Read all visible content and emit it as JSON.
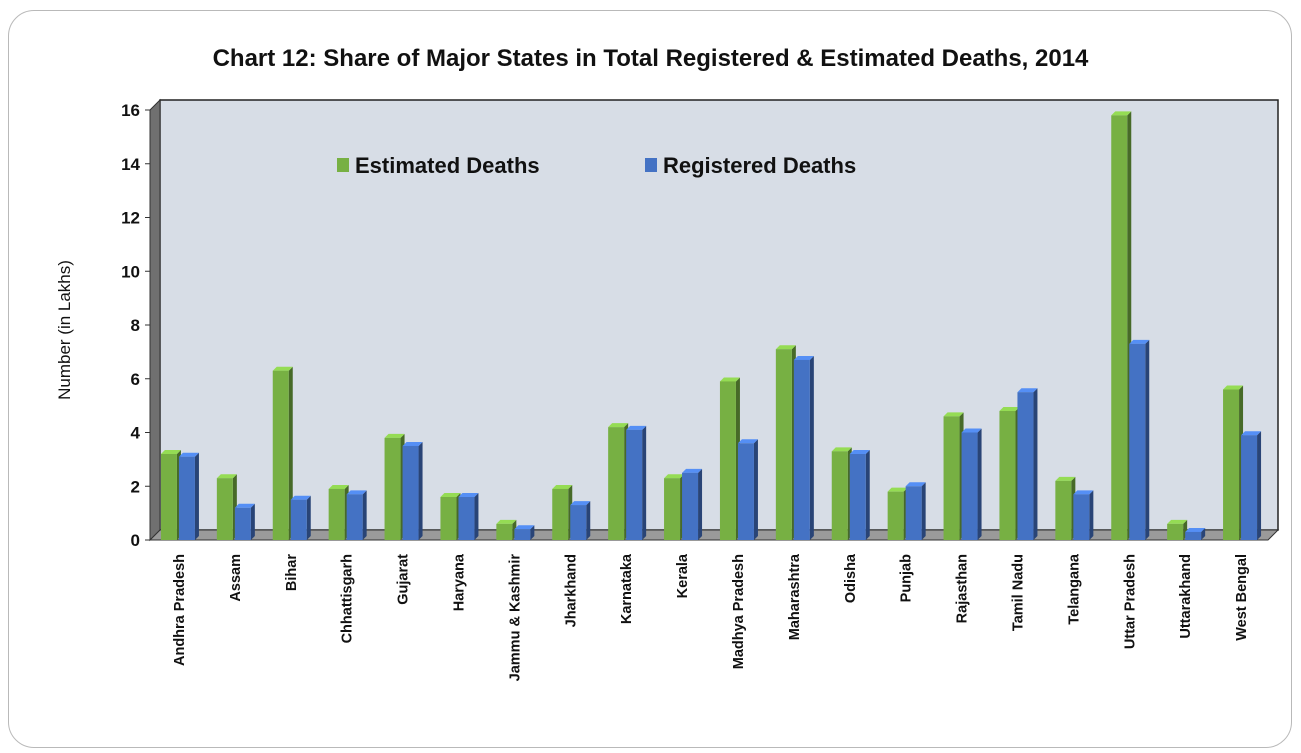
{
  "chart_data": {
    "type": "bar",
    "title": "Chart 12: Share of Major States in Total Registered & Estimated Deaths, 2014",
    "ylabel": "Number (in Lakhs)",
    "xlabel": "",
    "ylim": [
      0,
      16
    ],
    "yticks": [
      "0",
      "2",
      "4",
      "6",
      "8",
      "10",
      "12",
      "14",
      "16"
    ],
    "legend_position": "top-left inside plot",
    "grid": false,
    "categories": [
      "Andhra Pradesh",
      "Assam",
      "Bihar",
      "Chhattisgarh",
      "Gujarat",
      "Haryana",
      "Jammu & Kashmir",
      "Jharkhand",
      "Karnataka",
      "Kerala",
      "Madhya Pradesh",
      "Maharashtra",
      "Odisha",
      "Punjab",
      "Rajasthan",
      "Tamil Nadu",
      "Telangana",
      "Uttar Pradesh",
      "Uttarakhand",
      "West Bengal"
    ],
    "series": [
      {
        "name": "Estimated Deaths",
        "color": "#77b043",
        "values": [
          3.2,
          2.3,
          6.3,
          1.9,
          3.8,
          1.6,
          0.6,
          1.9,
          4.2,
          2.3,
          5.9,
          7.1,
          3.3,
          1.8,
          4.6,
          4.8,
          2.2,
          15.8,
          0.6,
          5.6
        ]
      },
      {
        "name": "Registered Deaths",
        "color": "#4472c4",
        "values": [
          3.1,
          1.2,
          1.5,
          1.7,
          3.5,
          1.6,
          0.4,
          1.3,
          4.1,
          2.5,
          3.6,
          6.7,
          3.2,
          2.0,
          4.0,
          5.5,
          1.7,
          7.3,
          0.3,
          3.9
        ]
      }
    ]
  }
}
